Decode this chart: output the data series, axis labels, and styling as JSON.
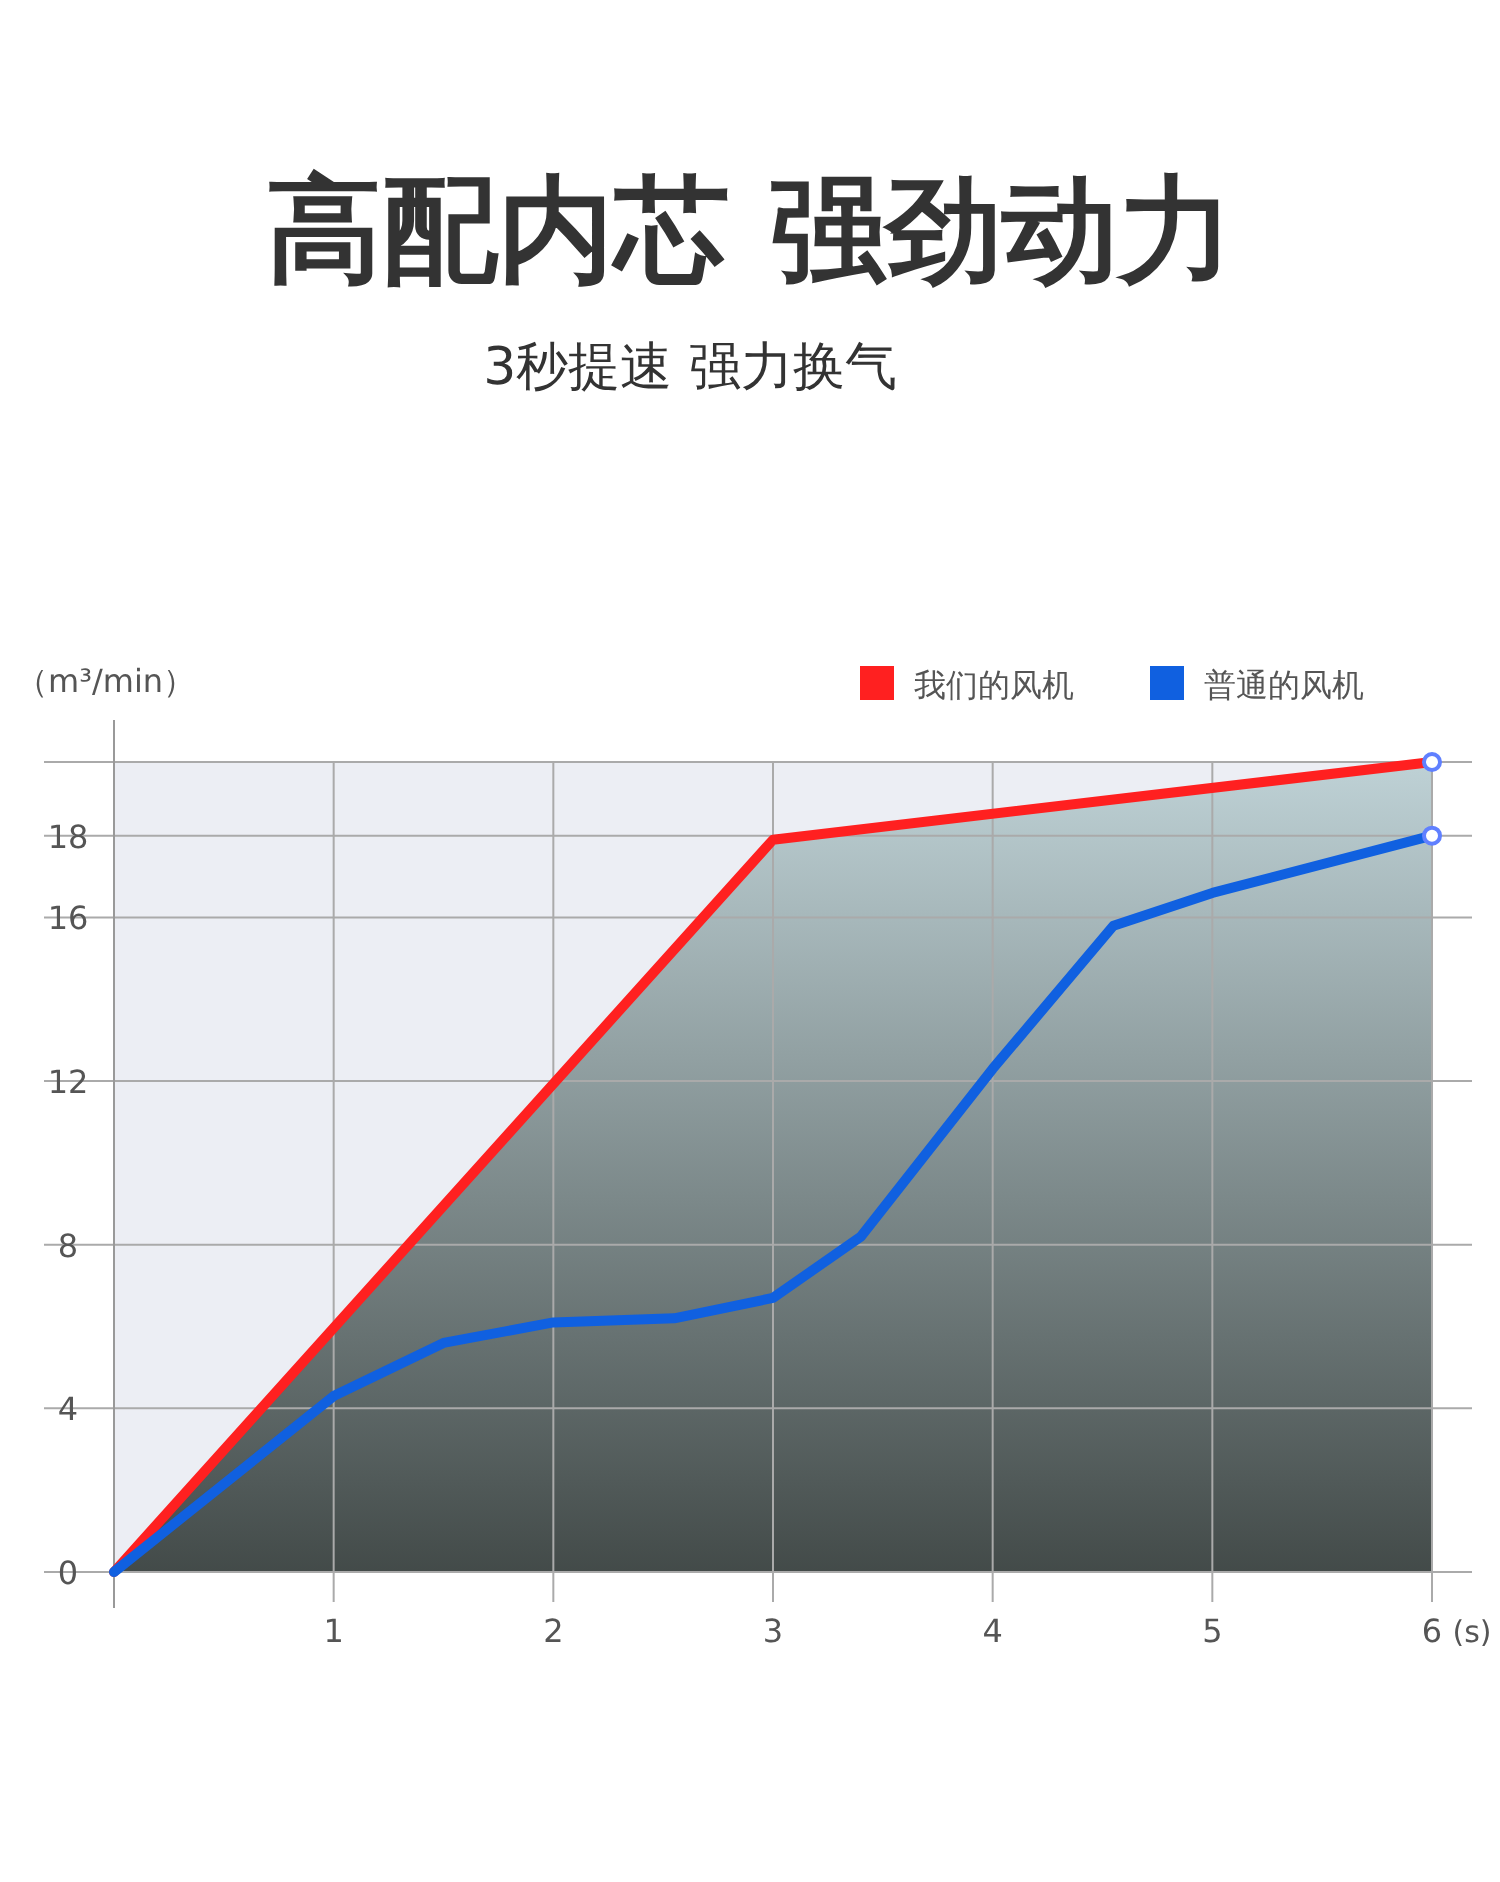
{
  "chart_data": {
    "type": "line",
    "title": "高配内芯 强劲动力",
    "subtitle": "3秒提速 强力换气",
    "ylabel": "（m³/min）",
    "xlabel": "(s)",
    "xlim": [
      0,
      6
    ],
    "xticks": [
      1,
      2,
      3,
      4,
      5,
      6
    ],
    "ylim": [
      0,
      19.8
    ],
    "yticks": [
      0,
      4,
      8,
      12,
      16,
      18
    ],
    "grid": true,
    "legend": "top right",
    "series": [
      {
        "name": "我们的风机",
        "color": "#ff2020",
        "type": "area",
        "x": [
          0,
          3,
          6
        ],
        "values": [
          0,
          17.9,
          19.8
        ]
      },
      {
        "name": "普通的风机",
        "color": "#1060e0",
        "x": [
          0,
          1,
          1.5,
          2,
          2.55,
          3,
          3.4,
          4,
          4.55,
          5,
          6
        ],
        "values": [
          0,
          4.3,
          5.6,
          6.1,
          6.2,
          6.7,
          8.2,
          12.3,
          15.8,
          16.6,
          18
        ]
      }
    ]
  }
}
